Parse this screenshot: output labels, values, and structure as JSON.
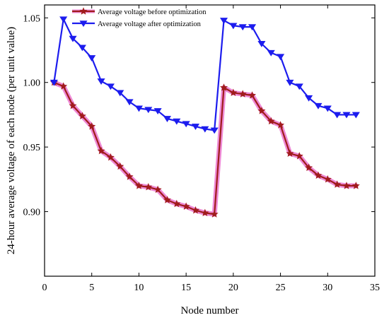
{
  "chart_data": {
    "type": "line",
    "title": "",
    "xlabel": "Node number",
    "ylabel": "24-hour average voltage of each node (per unit value)",
    "xlim": [
      0,
      35
    ],
    "ylim": [
      0.85,
      1.06
    ],
    "xticks": [
      0,
      5,
      10,
      15,
      20,
      25,
      30,
      35
    ],
    "yticks": [
      0.9,
      0.95,
      1.0,
      1.05
    ],
    "xtick_labels": [
      "0",
      "5",
      "10",
      "15",
      "20",
      "25",
      "30",
      "35"
    ],
    "ytick_labels": [
      "0.90",
      "0.95",
      "1.00",
      "1.05"
    ],
    "grid": false,
    "legend_position": "top-left",
    "x": [
      1,
      2,
      3,
      4,
      5,
      6,
      7,
      8,
      9,
      10,
      11,
      12,
      13,
      14,
      15,
      16,
      17,
      18,
      19,
      20,
      21,
      22,
      23,
      24,
      25,
      26,
      27,
      28,
      29,
      30,
      31,
      32,
      33
    ],
    "series": [
      {
        "name": "Average voltage before optimization",
        "color": "#a01c1c",
        "halo": "#ee8ad6",
        "marker": "star",
        "values": [
          1.0,
          0.997,
          0.982,
          0.974,
          0.966,
          0.947,
          0.942,
          0.935,
          0.927,
          0.92,
          0.919,
          0.917,
          0.909,
          0.906,
          0.904,
          0.901,
          0.899,
          0.898,
          0.996,
          0.992,
          0.991,
          0.99,
          0.978,
          0.97,
          0.967,
          0.945,
          0.943,
          0.934,
          0.928,
          0.925,
          0.921,
          0.92,
          0.92
        ]
      },
      {
        "name": "Average voltage after optimization",
        "color": "#1c1cee",
        "marker": "triangle-down",
        "values": [
          1.0,
          1.049,
          1.034,
          1.027,
          1.019,
          1.001,
          0.997,
          0.992,
          0.985,
          0.98,
          0.979,
          0.978,
          0.972,
          0.97,
          0.968,
          0.966,
          0.964,
          0.963,
          1.048,
          1.044,
          1.043,
          1.043,
          1.03,
          1.023,
          1.02,
          1.0,
          0.997,
          0.988,
          0.982,
          0.98,
          0.975,
          0.975,
          0.975
        ]
      }
    ]
  }
}
